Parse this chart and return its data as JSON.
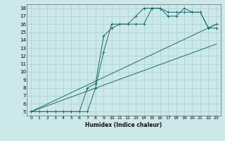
{
  "xlabel": "Humidex (Indice chaleur)",
  "ylabel": "",
  "bg_color": "#cce8ea",
  "grid_color": "#aacfd4",
  "line_color": "#1a6b6b",
  "xlim": [
    -0.5,
    23.5
  ],
  "ylim": [
    4.5,
    18.5
  ],
  "xtick_vals": [
    0,
    1,
    2,
    3,
    4,
    5,
    6,
    7,
    8,
    9,
    10,
    11,
    12,
    13,
    14,
    15,
    16,
    17,
    18,
    19,
    20,
    21,
    22,
    23
  ],
  "ytick_vals": [
    5,
    6,
    7,
    8,
    9,
    10,
    11,
    12,
    13,
    14,
    15,
    16,
    17,
    18
  ],
  "series": [
    {
      "x": [
        0,
        1,
        2,
        3,
        4,
        5,
        6,
        7,
        8,
        9,
        10,
        11,
        12,
        13,
        14,
        15,
        16,
        17,
        18,
        19,
        20,
        21,
        22,
        23
      ],
      "y": [
        5,
        5,
        5,
        5,
        5,
        5,
        5,
        8,
        8.5,
        14.5,
        15.5,
        16,
        16,
        17,
        18,
        18,
        18,
        17.5,
        17.5,
        17.5,
        17.5,
        17.5,
        15.5,
        15.5
      ],
      "marker": true
    },
    {
      "x": [
        0,
        1,
        2,
        3,
        4,
        5,
        6,
        7,
        8,
        9,
        10,
        11,
        12,
        13,
        14,
        15,
        16,
        17,
        18,
        19,
        20,
        21,
        22,
        23
      ],
      "y": [
        5,
        5,
        5,
        5,
        5,
        5,
        5,
        5,
        8,
        12.5,
        16,
        16,
        16,
        16,
        16,
        18,
        18,
        17,
        17,
        18,
        17.5,
        17.5,
        15.5,
        16
      ],
      "marker": true
    },
    {
      "x": [
        0,
        23
      ],
      "y": [
        5,
        16
      ],
      "marker": false
    },
    {
      "x": [
        0,
        23
      ],
      "y": [
        5,
        13.5
      ],
      "marker": false
    }
  ]
}
